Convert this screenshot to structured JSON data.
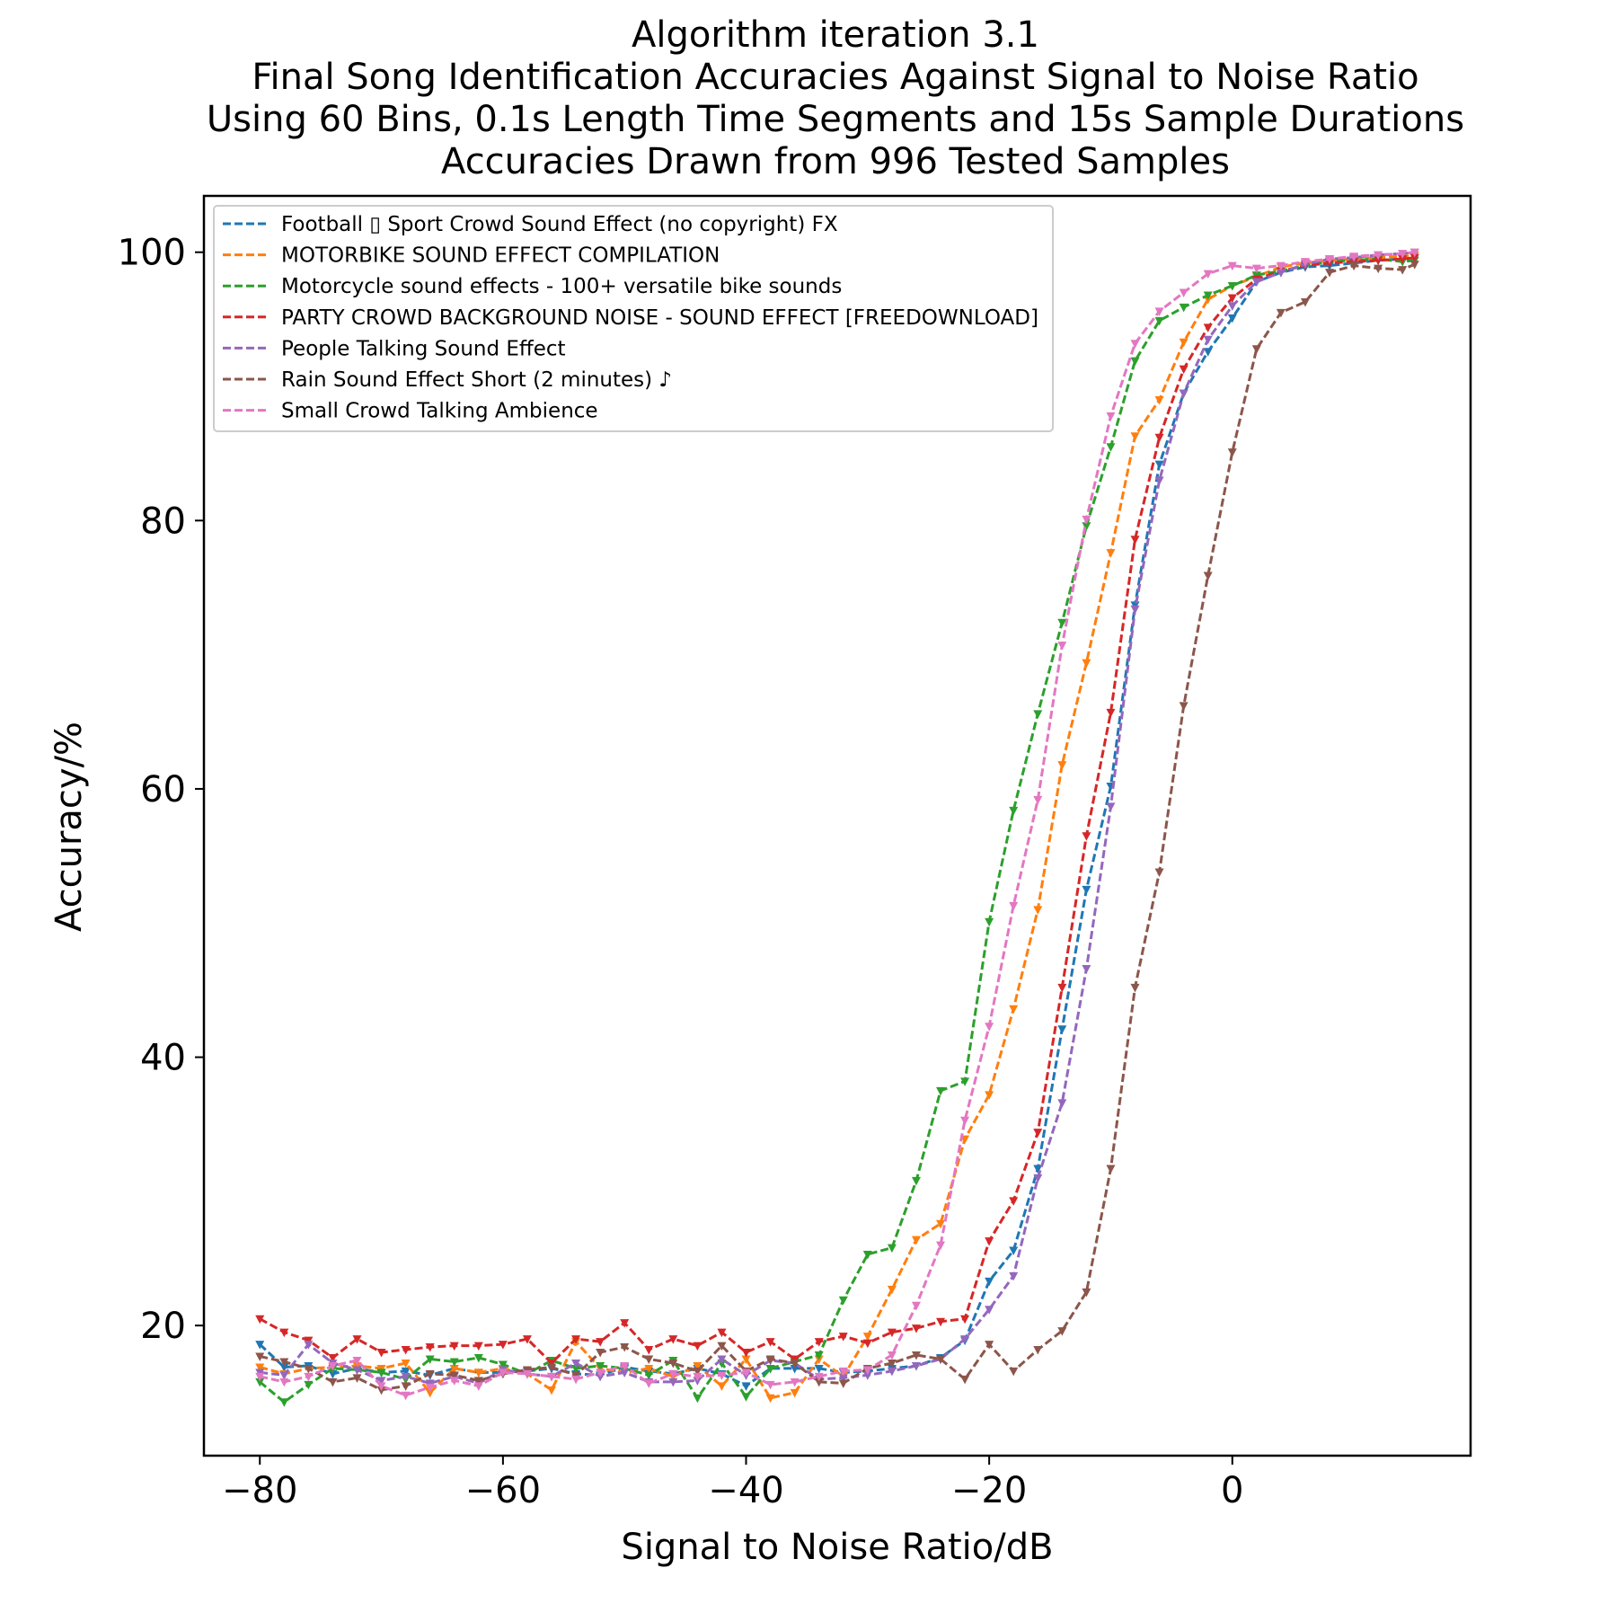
{
  "chart_data": {
    "type": "line",
    "title": [
      "Algorithm iteration 3.1",
      "Final Song Identification Accuracies Against Signal to Noise Ratio",
      "Using 60 Bins, 0.1s Length Time Segments and 15s Sample Durations",
      "Accuracies Drawn from 996 Tested Samples"
    ],
    "xlabel": "Signal to Noise Ratio/dB",
    "ylabel": "Accuracy/%",
    "xlim": [
      -84.6,
      19.6
    ],
    "ylim": [
      10.3,
      104.2
    ],
    "xticks": [
      -80,
      -60,
      -40,
      -20,
      0
    ],
    "xtick_labels": [
      "−80",
      "−60",
      "−40",
      "−20",
      "0"
    ],
    "yticks": [
      20,
      40,
      60,
      80,
      100
    ],
    "ytick_labels": [
      "20",
      "40",
      "60",
      "80",
      "100"
    ],
    "grid": false,
    "legend_position": "top-left",
    "line_style": "dashed",
    "marker": "triangle-down",
    "x": [
      -80,
      -78,
      -76,
      -74,
      -72,
      -70,
      -68,
      -66,
      -64,
      -62,
      -60,
      -58,
      -56,
      -54,
      -52,
      -50,
      -48,
      -46,
      -44,
      -42,
      -40,
      -38,
      -36,
      -34,
      -32,
      -30,
      -28,
      -26,
      -24,
      -22,
      -20,
      -18,
      -16,
      -14,
      -12,
      -10,
      -8,
      -6,
      -4,
      -2,
      0,
      2,
      4,
      6,
      8,
      10,
      12,
      14,
      15
    ],
    "series": [
      {
        "name": "Football ▯ Sport Crowd Sound Effect (no copyright) FX",
        "color": "#1f77b4",
        "values": [
          18.6,
          16.9,
          17.0,
          16.4,
          16.8,
          16.5,
          16.6,
          16.3,
          16.8,
          16.5,
          16.5,
          16.6,
          16.8,
          16.4,
          16.3,
          16.9,
          16.6,
          16.4,
          16.8,
          16.4,
          15.5,
          16.8,
          16.8,
          16.8,
          16.5,
          16.6,
          16.8,
          17.0,
          17.6,
          18.9,
          23.3,
          25.6,
          31.7,
          42.1,
          52.5,
          60.2,
          73.7,
          84.2,
          89.5,
          92.6,
          95.1,
          97.8,
          98.5,
          98.9,
          99.0,
          99.2,
          99.4,
          99.5,
          99.6
        ]
      },
      {
        "name": "MOTORBIKE SOUND EFFECT COMPILATION",
        "color": "#ff7f0e",
        "values": [
          16.9,
          16.4,
          16.8,
          16.9,
          17.0,
          16.8,
          17.2,
          15.0,
          16.8,
          16.5,
          16.8,
          16.4,
          15.2,
          18.8,
          16.8,
          16.5,
          16.8,
          16.2,
          17.0,
          15.5,
          17.5,
          14.6,
          15.0,
          17.5,
          16.2,
          19.2,
          22.7,
          26.4,
          27.6,
          33.9,
          37.2,
          43.6,
          51.0,
          61.8,
          69.4,
          77.6,
          86.3,
          89.0,
          93.3,
          96.5,
          97.5,
          98.2,
          98.9,
          99.2,
          99.4,
          99.5,
          99.6,
          99.7,
          99.8
        ]
      },
      {
        "name": "Motorcycle sound effects - 100+ versatile bike sounds",
        "color": "#2ca02c",
        "values": [
          15.8,
          14.3,
          15.6,
          16.8,
          16.7,
          16.5,
          16.0,
          17.5,
          17.3,
          17.6,
          17.1,
          16.4,
          17.4,
          16.8,
          17.0,
          16.8,
          16.3,
          17.4,
          14.6,
          17.2,
          14.7,
          16.8,
          17.3,
          17.8,
          21.9,
          25.3,
          25.8,
          30.8,
          37.5,
          38.2,
          50.1,
          58.4,
          65.6,
          72.4,
          79.6,
          85.5,
          91.9,
          94.9,
          95.9,
          96.8,
          97.5,
          98.3,
          98.6,
          99.0,
          99.3,
          99.4,
          99.5,
          99.3,
          99.4
        ]
      },
      {
        "name": "PARTY CROWD BACKGROUND NOISE - SOUND EFFECT [FREEDOWNLOAD]",
        "color": "#d62728",
        "values": [
          20.5,
          19.5,
          18.9,
          17.6,
          19.0,
          18.0,
          18.2,
          18.4,
          18.5,
          18.5,
          18.6,
          19.0,
          17.2,
          19.0,
          18.8,
          20.2,
          18.2,
          19.0,
          18.5,
          19.5,
          18.0,
          18.8,
          17.5,
          18.8,
          19.2,
          18.7,
          19.5,
          19.8,
          20.3,
          20.5,
          26.3,
          29.3,
          34.4,
          45.2,
          56.5,
          65.7,
          78.6,
          86.2,
          91.3,
          94.4,
          96.6,
          98.0,
          98.6,
          99.0,
          99.2,
          99.3,
          99.4,
          99.5,
          99.6
        ]
      },
      {
        "name": "People Talking Sound Effect",
        "color": "#9467bd",
        "values": [
          16.5,
          16.3,
          18.6,
          17.2,
          16.7,
          15.9,
          16.2,
          15.7,
          16.2,
          15.7,
          16.7,
          16.4,
          16.2,
          17.2,
          16.2,
          16.5,
          15.8,
          15.8,
          15.9,
          17.5,
          16.3,
          17.4,
          17.2,
          16.0,
          16.1,
          16.3,
          16.6,
          17.0,
          17.5,
          19.0,
          21.2,
          23.7,
          31.0,
          36.6,
          46.6,
          58.7,
          73.4,
          83.0,
          89.5,
          93.5,
          96.0,
          97.8,
          98.5,
          99.1,
          99.5,
          99.6,
          99.8,
          99.9,
          100.0
        ]
      },
      {
        "name": "Rain Sound Effect Short (2 minutes) ♪",
        "color": "#8c564b",
        "values": [
          17.7,
          17.3,
          16.8,
          15.8,
          16.1,
          15.2,
          15.5,
          16.4,
          16.3,
          15.9,
          16.4,
          16.7,
          16.9,
          16.3,
          18.0,
          18.4,
          17.5,
          17.2,
          16.6,
          18.5,
          16.6,
          17.5,
          17.2,
          15.8,
          15.7,
          16.8,
          17.2,
          17.8,
          17.5,
          16.0,
          18.6,
          16.6,
          18.2,
          19.6,
          22.5,
          31.7,
          45.2,
          53.8,
          66.2,
          75.9,
          85.1,
          92.8,
          95.5,
          96.3,
          98.5,
          99.0,
          98.8,
          98.7,
          99.1
        ]
      },
      {
        "name": "Small Crowd Talking Ambience",
        "color": "#e377c2",
        "values": [
          16.2,
          15.8,
          16.2,
          17.0,
          17.4,
          15.5,
          14.8,
          15.4,
          15.9,
          15.5,
          16.5,
          16.4,
          16.2,
          16.0,
          16.5,
          17.0,
          15.7,
          16.4,
          16.2,
          16.3,
          16.5,
          15.6,
          15.8,
          16.2,
          16.6,
          16.7,
          17.8,
          21.5,
          26.0,
          35.3,
          42.3,
          51.3,
          59.2,
          70.7,
          80.1,
          87.8,
          93.2,
          95.6,
          97.0,
          98.4,
          99.0,
          98.8,
          99.0,
          99.3,
          99.5,
          99.7,
          99.8,
          99.9,
          100.0
        ]
      }
    ]
  }
}
